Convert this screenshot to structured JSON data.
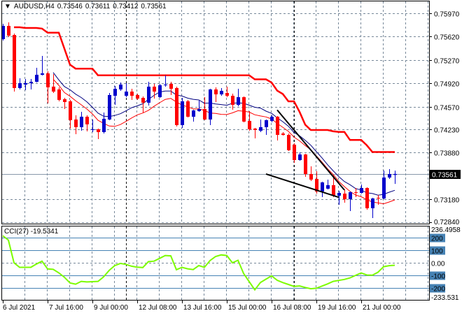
{
  "header": {
    "symbol": "AUDUSD,H4",
    "open": "0.73546",
    "high": "0.73611",
    "low": "0.73412",
    "close": "0.73561",
    "menu_icon": "triangle-down-icon"
  },
  "current_price_label": "0.73561",
  "colors": {
    "bull": "#0000cc",
    "bear": "#ff0000",
    "ma_fast": "#000080",
    "ma_low": "#ff0000",
    "upper": "#ff0000",
    "cci": "#7cfc00",
    "trendline": "#000000",
    "grid": "#778899",
    "level": "#4682b4"
  },
  "chart_data": [
    {
      "type": "candlestick",
      "title": "AUDUSD,H4",
      "y_ticks": [
        "0.75970",
        "0.75620",
        "0.75270",
        "0.74920",
        "0.74570",
        "0.74230",
        "0.73880",
        "0.73180",
        "0.72840"
      ],
      "ylim": [
        0.7284,
        0.7597
      ],
      "x_tick_labels": [
        "6 Jul 2021",
        "7 Jul 16:00",
        "9 Jul 00:00",
        "12 Jul 08:00",
        "13 Jul 16:00",
        "15 Jul 00:00",
        "16 Jul 08:00",
        "19 Jul 16:00",
        "21 Jul 00:00"
      ],
      "grid": true,
      "candles": [
        [
          0.75582,
          0.75813,
          0.75561,
          0.75781
        ],
        [
          0.75781,
          0.75834,
          0.75614,
          0.75635
        ],
        [
          0.75645,
          0.75666,
          0.74796,
          0.74849
        ],
        [
          0.74849,
          0.74995,
          0.74828,
          0.74922
        ],
        [
          0.74901,
          0.74985,
          0.74817,
          0.74922
        ],
        [
          0.74922,
          0.74985,
          0.74828,
          0.74943
        ],
        [
          0.74943,
          0.75153,
          0.74932,
          0.75048
        ],
        [
          0.75048,
          0.75331,
          0.75037,
          0.75069
        ],
        [
          0.75069,
          0.751,
          0.74618,
          0.74859
        ],
        [
          0.7487,
          0.75058,
          0.74775,
          0.74796
        ],
        [
          0.74828,
          0.74859,
          0.7465,
          0.74671
        ],
        [
          0.74681,
          0.74702,
          0.74534,
          0.74639
        ],
        [
          0.7465,
          0.74671,
          0.74241,
          0.74367
        ],
        [
          0.74377,
          0.7444,
          0.74157,
          0.74262
        ],
        [
          0.74262,
          0.74492,
          0.74209,
          0.74419
        ],
        [
          0.74419,
          0.7444,
          0.74199,
          0.74304
        ],
        [
          0.7422,
          0.74377,
          0.74188,
          0.7423
        ],
        [
          0.7423,
          0.74241,
          0.74084,
          0.74188
        ],
        [
          0.74188,
          0.74482,
          0.74167,
          0.74388
        ],
        [
          0.74377,
          0.74775,
          0.74367,
          0.74744
        ],
        [
          0.74733,
          0.7488,
          0.74597,
          0.74838
        ],
        [
          0.74828,
          0.74932,
          0.74807,
          0.74901
        ],
        [
          0.74733,
          0.74922,
          0.74712,
          0.74796
        ],
        [
          0.74796,
          0.74838,
          0.74671,
          0.74733
        ],
        [
          0.74744,
          0.74765,
          0.74671,
          0.74691
        ],
        [
          0.74702,
          0.74723,
          0.74482,
          0.74629
        ],
        [
          0.74629,
          0.74943,
          0.74587,
          0.7487
        ],
        [
          0.7487,
          0.74912,
          0.74691,
          0.74796
        ],
        [
          0.74712,
          0.74912,
          0.74702,
          0.74891
        ],
        [
          0.74891,
          0.75037,
          0.7487,
          0.74901
        ],
        [
          0.74912,
          0.74943,
          0.74744,
          0.74838
        ],
        [
          0.74849,
          0.7487,
          0.74272,
          0.74293
        ],
        [
          0.74293,
          0.74702,
          0.74251,
          0.7465
        ],
        [
          0.7465,
          0.74671,
          0.74409,
          0.74419
        ],
        [
          0.74419,
          0.74524,
          0.74346,
          0.74513
        ],
        [
          0.74503,
          0.7466,
          0.74492,
          0.74534
        ],
        [
          0.74534,
          0.74712,
          0.74367,
          0.74377
        ],
        [
          0.74377,
          0.74838,
          0.74293,
          0.74828
        ],
        [
          0.74828,
          0.74859,
          0.74639,
          0.74754
        ],
        [
          0.74754,
          0.74849,
          0.74733,
          0.74807
        ],
        [
          0.74775,
          0.7487,
          0.74712,
          0.74733
        ],
        [
          0.74733,
          0.74765,
          0.74524,
          0.74597
        ],
        [
          0.74597,
          0.74838,
          0.74576,
          0.74712
        ],
        [
          0.74712,
          0.74723,
          0.74335,
          0.74346
        ],
        [
          0.74356,
          0.74503,
          0.74209,
          0.7423
        ],
        [
          0.74241,
          0.74251,
          0.74094,
          0.7422
        ],
        [
          0.74209,
          0.74377,
          0.74188,
          0.74262
        ],
        [
          0.74262,
          0.74377,
          0.74147,
          0.74367
        ],
        [
          0.74356,
          0.7444,
          0.74335,
          0.74419
        ],
        [
          0.74419,
          0.74429,
          0.74063,
          0.74147
        ],
        [
          0.74167,
          0.74188,
          0.74136,
          0.74147
        ],
        [
          0.74147,
          0.74167,
          0.73905,
          0.73916
        ],
        [
          0.74,
          0.74021,
          0.73727,
          0.73769
        ],
        [
          0.73769,
          0.73884,
          0.73759,
          0.73853
        ],
        [
          0.73853,
          0.73864,
          0.73518,
          0.7356
        ],
        [
          0.7356,
          0.73675,
          0.73455,
          0.73476
        ],
        [
          0.73486,
          0.73602,
          0.73266,
          0.73298
        ],
        [
          0.73298,
          0.73444,
          0.73214,
          0.73434
        ],
        [
          0.7334,
          0.73476,
          0.73329,
          0.73392
        ],
        [
          0.73392,
          0.73549,
          0.73214,
          0.73235
        ],
        [
          0.73235,
          0.73308,
          0.73099,
          0.73277
        ],
        [
          0.73266,
          0.73329,
          0.7313,
          0.73182
        ],
        [
          0.73182,
          0.73298,
          0.73004,
          0.73287
        ],
        [
          0.73287,
          0.7335,
          0.73214,
          0.73277
        ],
        [
          0.73277,
          0.73402,
          0.73266,
          0.7335
        ],
        [
          0.7335,
          0.7336,
          0.73025,
          0.73046
        ],
        [
          0.73046,
          0.73203,
          0.72899,
          0.73193
        ],
        [
          0.73203,
          0.73245,
          0.73099,
          0.73193
        ],
        [
          0.73193,
          0.73612,
          0.73182,
          0.73507
        ],
        [
          0.73507,
          0.73633,
          0.73486,
          0.7356
        ],
        [
          0.73546,
          0.73611,
          0.73412,
          0.73561
        ]
      ],
      "upper_line": [
        null,
        null,
        0.7576,
        0.7576,
        0.7575,
        0.7575,
        0.7575,
        0.7574,
        0.7568,
        0.7568,
        0.7568,
        0.7544,
        0.752,
        0.7514,
        0.7514,
        0.7514,
        0.7514,
        0.7504,
        0.7504,
        0.7504,
        0.7504,
        0.7504,
        0.7504,
        0.7504,
        0.7504,
        0.7504,
        0.7504,
        0.7504,
        0.7504,
        0.7504,
        0.7504,
        0.7504,
        0.7504,
        0.7504,
        0.7504,
        0.7504,
        0.7504,
        0.7504,
        0.7504,
        0.7504,
        0.7504,
        0.7504,
        0.7504,
        0.7504,
        0.7504,
        0.7498,
        0.7498,
        0.7498,
        0.7493,
        0.7481,
        0.7476,
        0.7465,
        0.7465,
        0.7449,
        0.743,
        0.7422,
        0.7422,
        0.7422,
        0.7422,
        0.742,
        0.7419,
        0.7419,
        0.7407,
        0.7407,
        0.7407,
        0.7399,
        0.7389,
        0.7389,
        0.7389,
        0.7389,
        0.7389
      ],
      "trendlines": [
        {
          "from_bar": 49,
          "from_price": 0.7452,
          "to_bar": 61,
          "to_price": 0.7332
        },
        {
          "from_bar": 47,
          "from_price": 0.7356,
          "to_bar": 60,
          "to_price": 0.7321
        }
      ],
      "current_price": 0.73561
    },
    {
      "type": "line",
      "title": "CCI(27)",
      "value_label": "-19.5341",
      "ylim": [
        -233.531,
        236.4958
      ],
      "max_label": "236.4958",
      "min_label": "-233.531",
      "levels": [
        "200",
        "100",
        "0.00",
        "-100",
        "-200"
      ],
      "level_values": [
        200,
        100,
        0,
        -100,
        -200
      ],
      "values": [
        215,
        180,
        0,
        -36,
        -36,
        -36,
        -10,
        13,
        -49,
        -52,
        -80,
        -115,
        -160,
        -170,
        -148,
        -152,
        -150,
        -148,
        -112,
        -60,
        -22,
        -5,
        -13,
        -27,
        -35,
        -38,
        9,
        13,
        35,
        58,
        55,
        -55,
        -36,
        -48,
        -54,
        -22,
        -36,
        18,
        50,
        63,
        58,
        0,
        20,
        -85,
        -150,
        -215,
        -157,
        -130,
        -104,
        -139,
        -157,
        -172,
        -188,
        -184,
        -196,
        -206,
        -202,
        -185,
        -168,
        -148,
        -140,
        -132,
        -120,
        -100,
        -81,
        -97,
        -99,
        -75,
        -31,
        -23,
        -19.5341
      ]
    }
  ]
}
